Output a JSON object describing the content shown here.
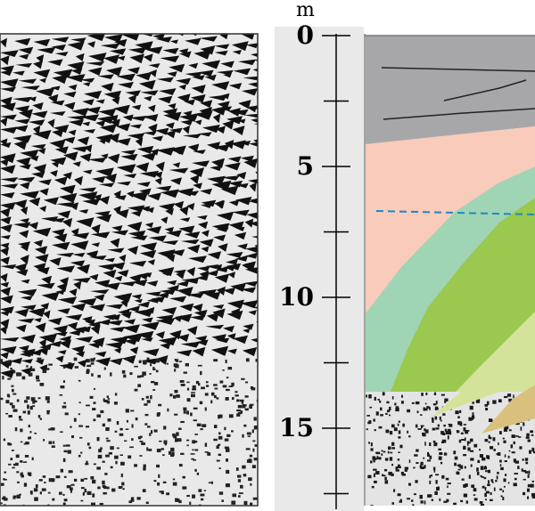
{
  "depth_axis": {
    "unit": "m",
    "tick_labels": [
      "0",
      "5",
      "10",
      "15"
    ],
    "major_values": [
      0,
      5,
      10,
      15
    ],
    "minor_values": [
      2.5,
      7.5,
      12.5,
      17.5
    ],
    "range": [
      0,
      18
    ]
  },
  "colors": {
    "page": "#ffffff",
    "panel_background": "#e9e9e9",
    "radar_trace": "#111111",
    "upper_layer": "#a7a7a9",
    "pink_layer": "#f8cbbb",
    "teal_layer": "#9fd5b4",
    "green_layer": "#9bc84e",
    "light_green_layer": "#d3e39a",
    "tan_layer": "#d9c07c",
    "water_table_line": "#1e88c8"
  }
}
